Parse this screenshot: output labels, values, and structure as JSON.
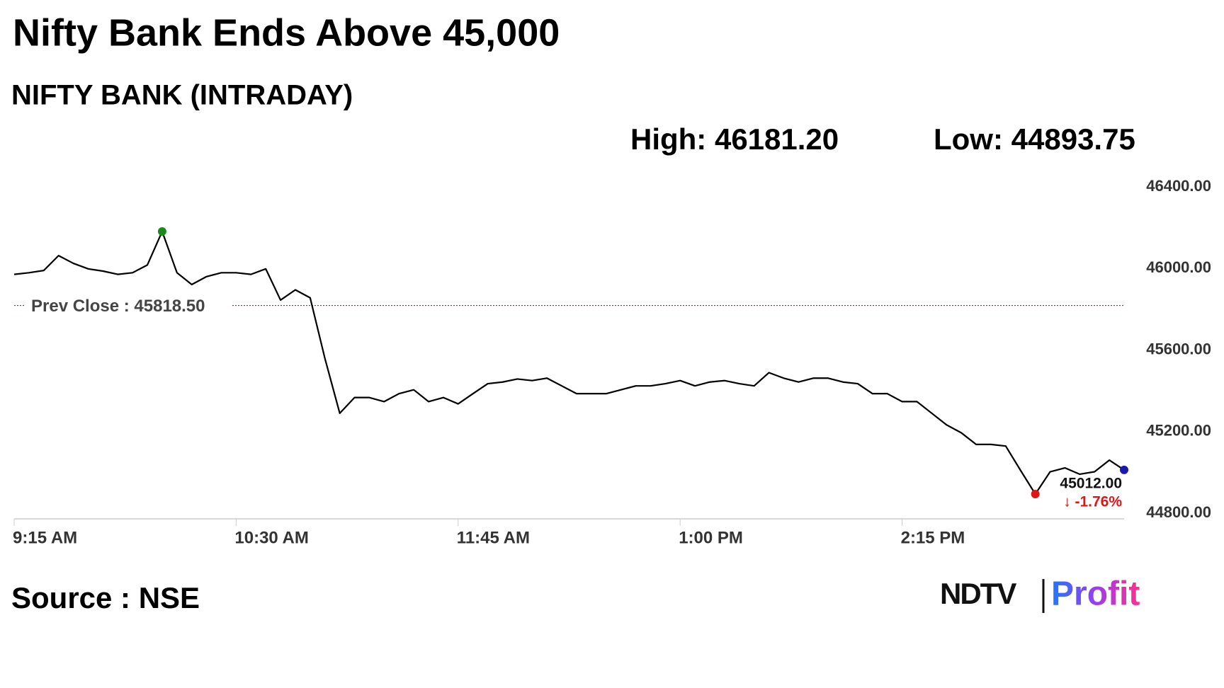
{
  "chart_data": {
    "type": "line",
    "title": "Nifty Bank Ends Above 45,000",
    "subtitle": "NIFTY BANK (INTRADAY)",
    "high_label": "High: 46181.20",
    "low_label": "Low: 44893.75",
    "x": [
      "9:15 AM",
      "9:20 AM",
      "9:25 AM",
      "9:30 AM",
      "9:35 AM",
      "9:40 AM",
      "9:45 AM",
      "9:50 AM",
      "9:55 AM",
      "10:00 AM",
      "10:05 AM",
      "10:10 AM",
      "10:15 AM",
      "10:20 AM",
      "10:25 AM",
      "10:30 AM",
      "10:35 AM",
      "10:40 AM",
      "10:45 AM",
      "10:50 AM",
      "10:55 AM",
      "11:00 AM",
      "11:05 AM",
      "11:10 AM",
      "11:15 AM",
      "11:20 AM",
      "11:25 AM",
      "11:30 AM",
      "11:35 AM",
      "11:40 AM",
      "11:45 AM",
      "11:50 AM",
      "11:55 AM",
      "12:00 PM",
      "12:05 PM",
      "12:10 PM",
      "12:15 PM",
      "12:20 PM",
      "12:25 PM",
      "12:30 PM",
      "12:35 PM",
      "12:40 PM",
      "12:45 PM",
      "12:50 PM",
      "12:55 PM",
      "1:00 PM",
      "1:05 PM",
      "1:10 PM",
      "1:15 PM",
      "1:20 PM",
      "1:25 PM",
      "1:30 PM",
      "1:35 PM",
      "1:40 PM",
      "1:45 PM",
      "1:50 PM",
      "1:55 PM",
      "2:00 PM",
      "2:05 PM",
      "2:10 PM",
      "2:15 PM",
      "2:20 PM",
      "2:25 PM",
      "2:30 PM",
      "2:35 PM",
      "2:40 PM",
      "2:45 PM",
      "2:50 PM",
      "2:55 PM",
      "3:00 PM",
      "3:05 PM",
      "3:10 PM",
      "3:15 PM",
      "3:20 PM",
      "3:25 PM",
      "3:30 PM"
    ],
    "series": [
      {
        "name": "NIFTY BANK",
        "color": "#000000",
        "values": [
          45971,
          45979,
          45990,
          46063,
          46025,
          45998,
          45987,
          45971,
          45979,
          46017,
          46181.2,
          45979,
          45921,
          45960,
          45979,
          45979,
          45971,
          45998,
          45845,
          45895,
          45856,
          45558,
          45290,
          45367,
          45367,
          45347,
          45386,
          45405,
          45347,
          45367,
          45336,
          45386,
          45435,
          45443,
          45458,
          45450,
          45462,
          45424,
          45386,
          45386,
          45386,
          45405,
          45424,
          45424,
          45435,
          45450,
          45424,
          45443,
          45450,
          45435,
          45424,
          45489,
          45462,
          45443,
          45462,
          45462,
          45443,
          45435,
          45386,
          45386,
          45347,
          45347,
          45290,
          45233,
          45194,
          45137,
          45137,
          45129,
          45010,
          44893.75,
          45003,
          45022,
          44991,
          45003,
          45060,
          45012
        ]
      }
    ],
    "ylim": [
      44800,
      46400
    ],
    "yticks": [
      {
        "value": 44800,
        "label": "44800.00"
      },
      {
        "value": 45200,
        "label": "45200.00"
      },
      {
        "value": 45600,
        "label": "45600.00"
      },
      {
        "value": 46000,
        "label": "46000.00"
      },
      {
        "value": 46400,
        "label": "46400.00"
      }
    ],
    "xticks": [
      "9:15 AM",
      "10:30 AM",
      "11:45 AM",
      "1:00 PM",
      "2:15 PM"
    ],
    "grid": false,
    "reference_line": {
      "value": 45818.5,
      "label": "Prev Close : 45818.50",
      "color": "#b22222"
    },
    "last_label": {
      "value": 45012,
      "label": "45012.00"
    },
    "change": {
      "value": -1.76,
      "label": "↓ -1.76%"
    },
    "high_color": "#1a8a1a",
    "low_color": "#e01515",
    "last_color": "#1a1aaa",
    "source": "Source : NSE",
    "brand": {
      "left": "NDTV",
      "right": "Profit"
    }
  }
}
